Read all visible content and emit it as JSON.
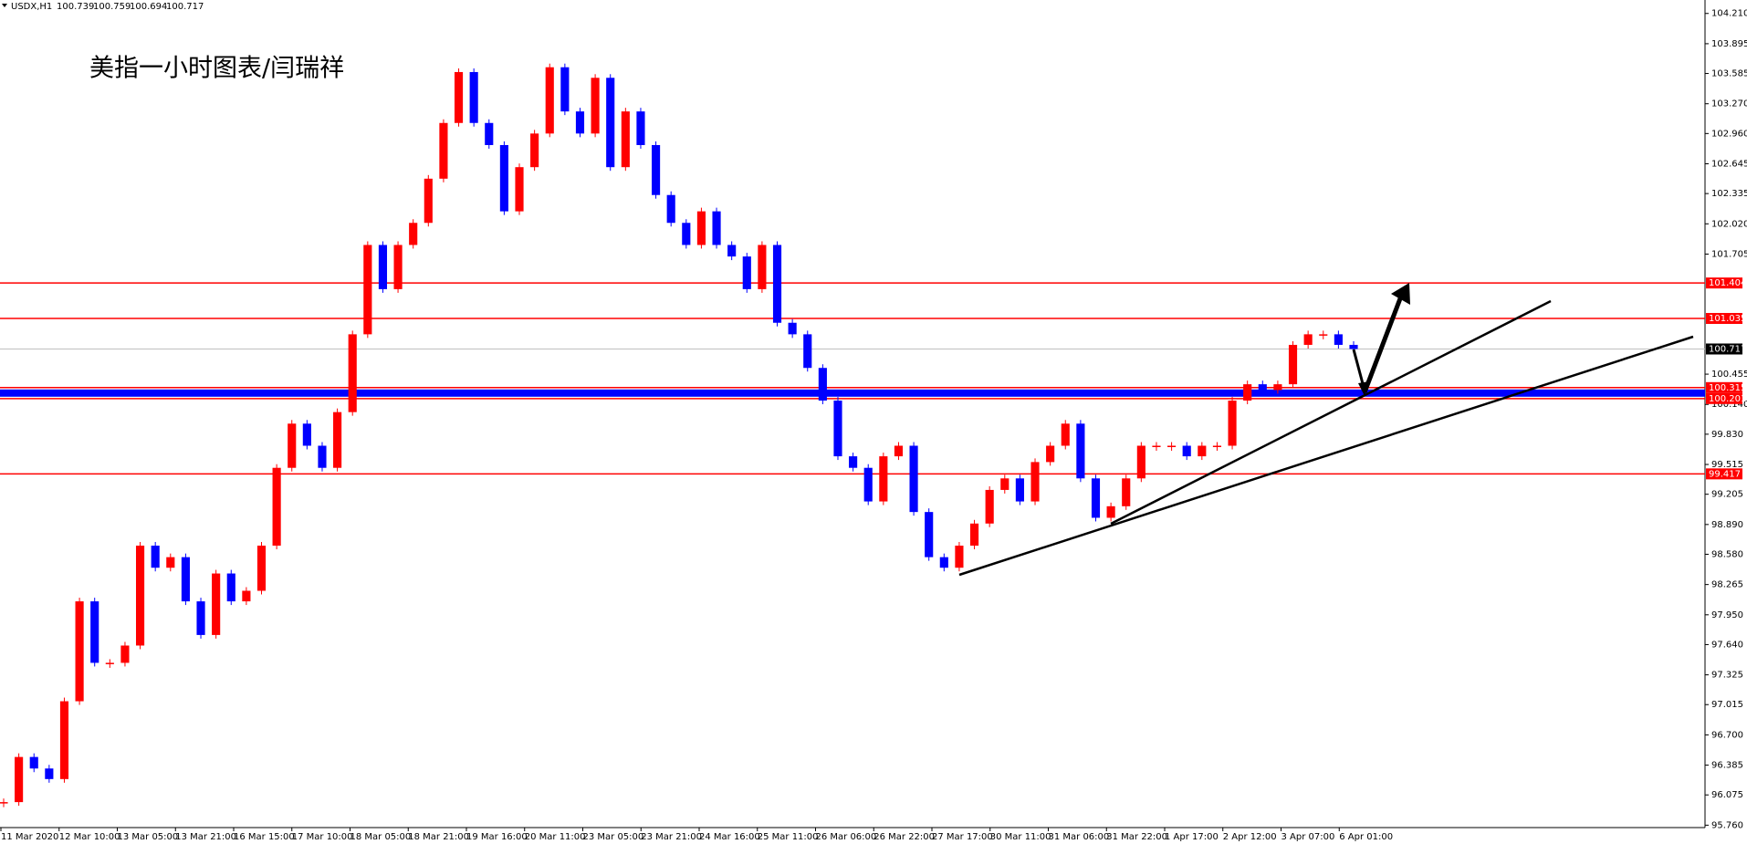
{
  "chart_data": {
    "type": "candlestick",
    "symbol": "USDX,H1",
    "ohlc": [
      100.739,
      100.759,
      100.694,
      100.717
    ],
    "title": "美指一小时图表/闫瑞祥",
    "up_color": "#ff0000",
    "down_color": "#0000ff",
    "level_color": "#ff0000",
    "ylim": [
      95.735,
      104.35
    ],
    "yticks": [
      {
        "value": 104.21,
        "label": "104.210"
      },
      103.895,
      103.585,
      {
        "value": 103.27,
        "label": "103.270"
      },
      {
        "value": 102.96,
        "label": "102.960"
      },
      102.645,
      102.335,
      {
        "value": 102.02,
        "label": "102.020"
      },
      101.705,
      100.455,
      {
        "value": 100.14,
        "label": "100.140"
      },
      {
        "value": 99.83,
        "label": "99.830"
      },
      99.515,
      99.205,
      {
        "value": 98.89,
        "label": "98.890"
      },
      {
        "value": 98.58,
        "label": "98.580"
      },
      98.265,
      {
        "value": 97.95,
        "label": "97.950"
      },
      {
        "value": 97.64,
        "label": "97.640"
      },
      97.325,
      97.015,
      {
        "value": 96.7,
        "label": "96.700"
      },
      96.385,
      96.075,
      {
        "value": 95.76,
        "label": "95.760"
      }
    ],
    "levels": [
      101.404,
      101.035,
      100.315,
      100.201,
      99.417
    ],
    "x_labels": [
      "11 Mar 2020",
      "12 Mar 10:00",
      "13 Mar 05:00",
      "13 Mar 21:00",
      "16 Mar 15:00",
      "17 Mar 10:00",
      "18 Mar 05:00",
      "18 Mar 21:00",
      "19 Mar 16:00",
      "20 Mar 11:00",
      "23 Mar 05:00",
      "23 Mar 21:00",
      "24 Mar 16:00",
      "25 Mar 11:00",
      "26 Mar 06:00",
      "26 Mar 22:00",
      "27 Mar 17:00",
      "30 Mar 11:00",
      "31 Mar 06:00",
      "31 Mar 22:00",
      "1 Apr 17:00",
      "2 Apr 12:00",
      "3 Apr 07:00",
      "6 Apr 01:00"
    ],
    "values": [
      96.0,
      96.47,
      96.35,
      96.24,
      97.05,
      98.09,
      97.45,
      97.45,
      97.63,
      98.67,
      98.44,
      98.55,
      98.09,
      97.74,
      98.38,
      98.09,
      98.2,
      98.67,
      99.48,
      99.94,
      99.71,
      99.48,
      100.06,
      100.87,
      101.8,
      101.34,
      101.8,
      102.03,
      102.49,
      103.07,
      103.6,
      103.07,
      102.84,
      102.15,
      102.61,
      102.96,
      103.65,
      103.19,
      102.96,
      103.54,
      102.61,
      103.19,
      102.84,
      102.32,
      102.03,
      101.8,
      102.15,
      101.8,
      101.68,
      101.34,
      101.8,
      100.99,
      100.87,
      100.52,
      100.18,
      99.6,
      99.48,
      99.13,
      99.6,
      99.71,
      99.02,
      98.55,
      98.44,
      98.67,
      98.9,
      99.25,
      99.37,
      99.13,
      99.54,
      99.71,
      99.94,
      99.37,
      98.96,
      99.08,
      99.37,
      99.71,
      99.71,
      99.71,
      99.6,
      99.71,
      99.71,
      100.18,
      100.35,
      100.29,
      100.35,
      100.76,
      100.87,
      100.87,
      100.76,
      100.717
    ]
  }
}
